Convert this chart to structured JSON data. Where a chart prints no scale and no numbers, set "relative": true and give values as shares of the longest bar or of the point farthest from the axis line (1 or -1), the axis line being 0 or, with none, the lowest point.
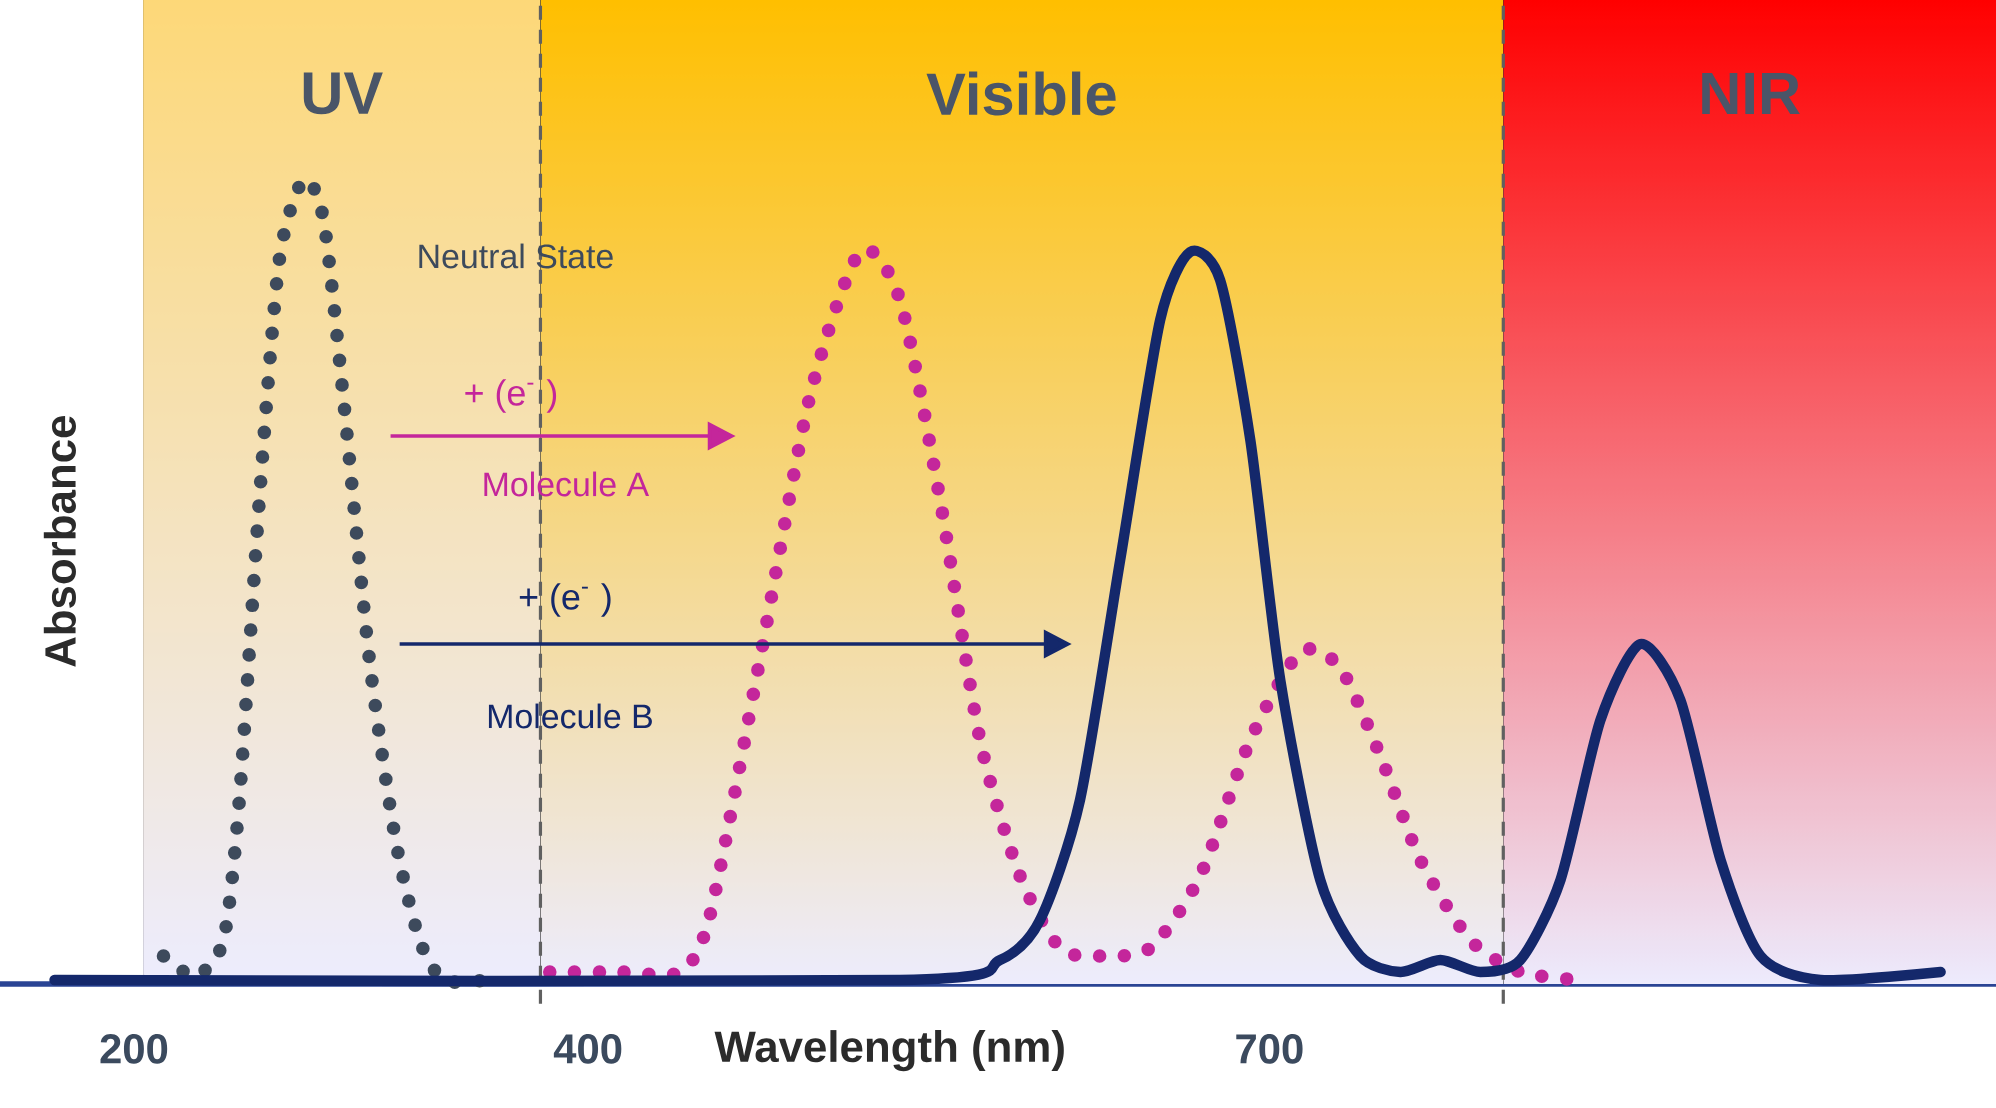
{
  "chart_data": {
    "type": "line",
    "relative": true,
    "xlabel": "Wavelength (nm)",
    "ylabel": "Absorbance",
    "xlim": [
      141,
      1020
    ],
    "xticks": [
      200,
      400,
      700
    ],
    "series": [
      {
        "name": "Neutral State",
        "color": "#3d4a5c",
        "line_style": "dotted",
        "x": [
          213,
          227,
          239.4,
          246.4,
          255.2,
          264,
          274.6,
          283.5,
          292.3,
          303.7,
          315.2,
          325.8,
          336.4,
          354.9
        ],
        "values": [
          0.03,
          0.005,
          0.05,
          0.225,
          0.6,
          0.9,
          1.0,
          0.95,
          0.725,
          0.4,
          0.175,
          0.05,
          0,
          0
        ]
      },
      {
        "name": "Molecule A",
        "color": "#c4269b",
        "line_style": "dotted",
        "x": [
          383.1,
          413.9,
          440.4,
          453.6,
          475.6,
          497.7,
          519.7,
          537.3,
          555,
          572.6,
          590.2,
          607.8,
          625.5,
          647.5,
          669.5,
          691.6,
          713.6,
          731.2,
          748.9,
          766.5,
          788.5,
          810.6,
          837
        ],
        "values": [
          0.01,
          0.01,
          0.01,
          0.08,
          0.4,
          0.73,
          0.91,
          0.85,
          0.6,
          0.3,
          0.13,
          0.04,
          0.03,
          0.04,
          0.13,
          0.3,
          0.41,
          0.39,
          0.28,
          0.15,
          0.05,
          0.01,
          0
        ]
      },
      {
        "name": "Molecule B",
        "color": "#14286b",
        "line_style": "solid",
        "x": [
          165,
          537.3,
          581.4,
          599,
          616.6,
          634.3,
          651.9,
          665.1,
          678.3,
          691.6,
          704.8,
          722.4,
          740,
          757.7,
          775.3,
          792.9,
          810.5,
          828.2,
          845.8,
          863.4,
          881,
          898.7,
          916.3,
          942.7,
          995.6
        ],
        "values": [
          0,
          0,
          0.025,
          0.075,
          0.225,
          0.525,
          0.825,
          0.91,
          0.875,
          0.675,
          0.375,
          0.125,
          0.03,
          0.01,
          0.025,
          0.01,
          0.025,
          0.125,
          0.325,
          0.42,
          0.35,
          0.15,
          0.03,
          0,
          0.01
        ]
      }
    ],
    "bands": [
      {
        "axis": "x",
        "from": 204,
        "to": 379,
        "label": "UV",
        "color": "#fdd878"
      },
      {
        "axis": "x",
        "from": 379,
        "to": 803,
        "label": "Visible",
        "color": "#ffbf00"
      },
      {
        "axis": "x",
        "from": 803,
        "to": 1020,
        "label": "NIR",
        "color": "#ff0000"
      }
    ],
    "ref_lines": [
      {
        "axis": "x",
        "value": 379,
        "color": "#606060",
        "line_style": "dashed"
      },
      {
        "axis": "x",
        "value": 803,
        "color": "#606060",
        "line_style": "dashed"
      }
    ],
    "annotations": [
      "+ (e$^{-}$ )",
      "+ (e$^{-}$ )"
    ]
  }
}
